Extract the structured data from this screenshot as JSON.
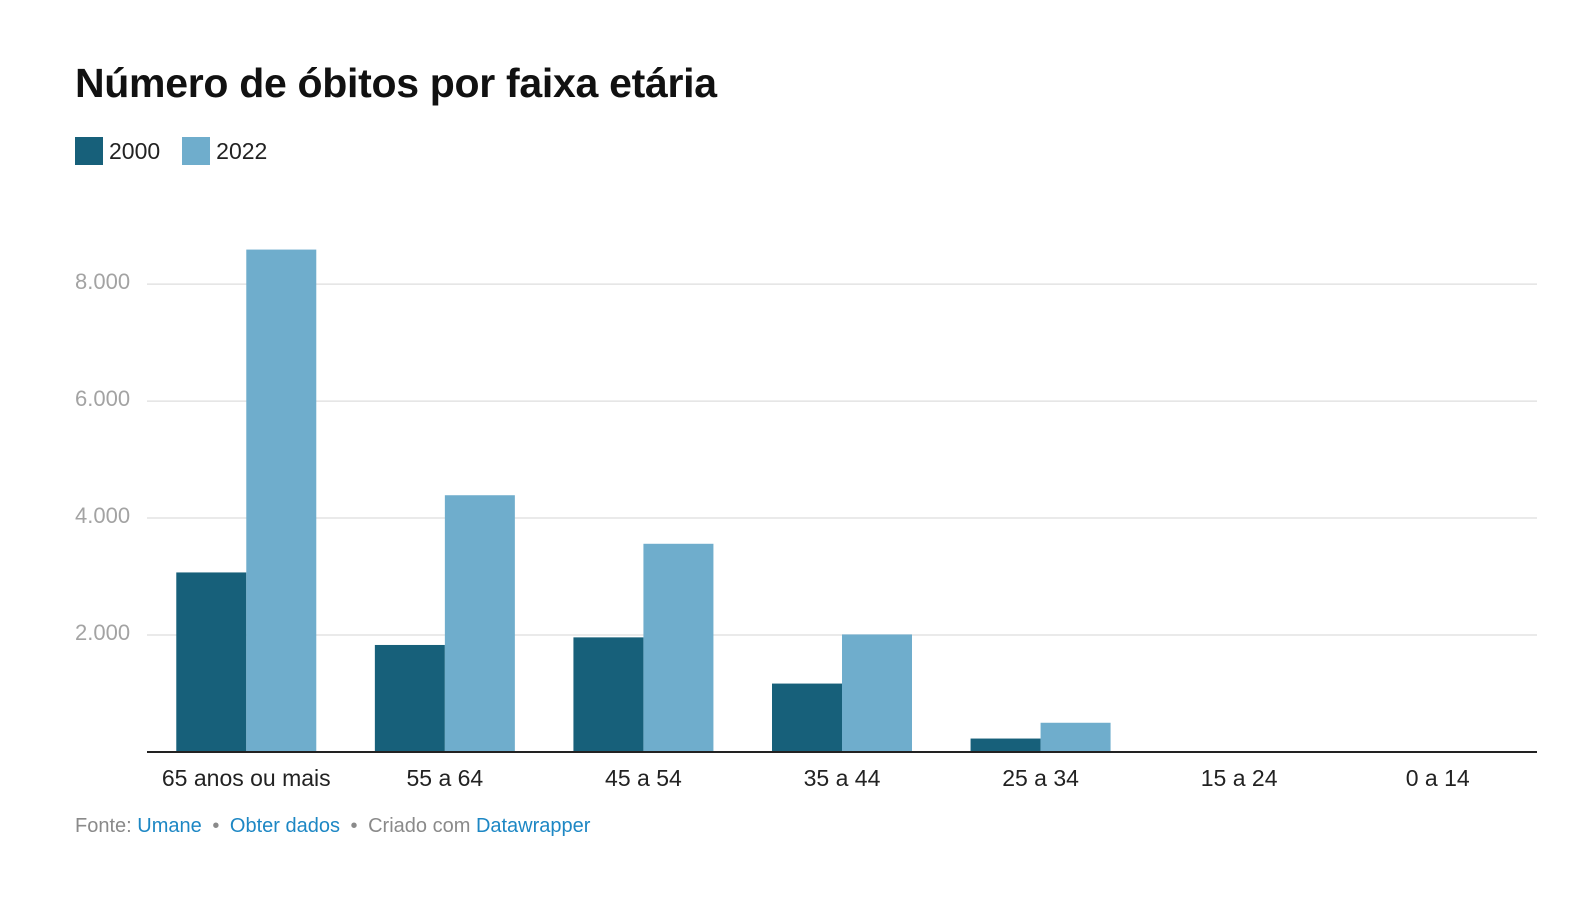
{
  "title": "Número de óbitos por faixa etária",
  "chart_data": {
    "type": "bar",
    "title": "Número de óbitos por faixa etária",
    "xlabel": "",
    "ylabel": "",
    "categories": [
      "65 anos ou mais",
      "55 a 64",
      "45 a 54",
      "35 a 44",
      "25 a 34",
      "15 a 24",
      "0 a 14"
    ],
    "series": [
      {
        "name": "2000",
        "color": "#17607a",
        "values": [
          3070,
          1830,
          1960,
          1170,
          230,
          0,
          0
        ]
      },
      {
        "name": "2022",
        "color": "#6fadcc",
        "values": [
          8590,
          4390,
          3560,
          2010,
          500,
          0,
          0
        ]
      }
    ],
    "ylim": [
      0,
      8600
    ],
    "yticks": [
      2000,
      4000,
      6000,
      8000
    ],
    "ytick_labels": [
      "2.000",
      "4.000",
      "6.000",
      "8.000"
    ],
    "grid": true,
    "legend_position": "top-left"
  },
  "footer": {
    "source_label": "Fonte:",
    "source_link": "Umane",
    "separator": "•",
    "data_link": "Obter dados",
    "created_label": "Criado com",
    "tool_link": "Datawrapper"
  }
}
